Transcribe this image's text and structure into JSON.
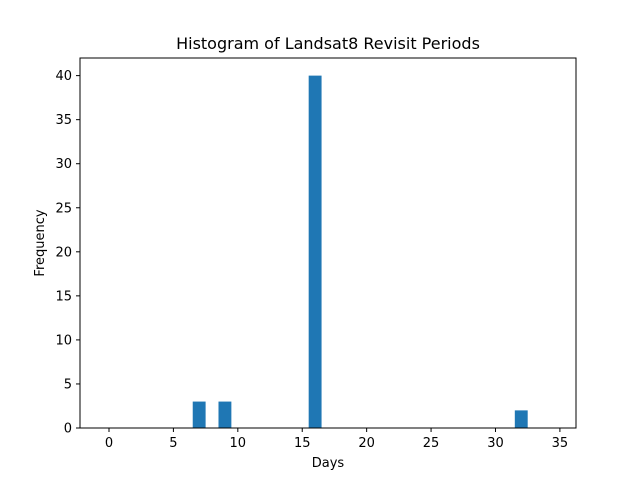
{
  "chart_data": {
    "type": "bar",
    "title": "Histogram of Landsat8 Revisit Periods",
    "xlabel": "Days",
    "ylabel": "Frequency",
    "xlim": [
      -2.25,
      36.25
    ],
    "ylim": [
      0,
      42
    ],
    "bar_width": 1.0,
    "x": [
      7,
      9,
      16,
      32
    ],
    "values": [
      3,
      3,
      40,
      2
    ],
    "x_ticks": [
      0,
      5,
      10,
      15,
      20,
      25,
      30,
      35
    ],
    "y_ticks": [
      0,
      5,
      10,
      15,
      20,
      25,
      30,
      35,
      40
    ],
    "bar_color": "#1f77b4",
    "grid": false,
    "legend": "none"
  }
}
